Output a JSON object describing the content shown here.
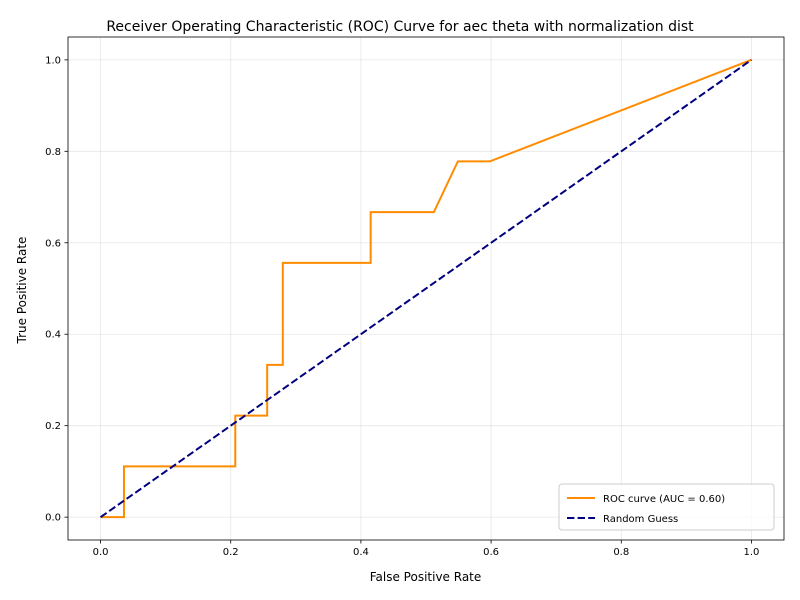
{
  "chart_data": {
    "type": "line",
    "title": "Receiver Operating Characteristic (ROC) Curve for aec theta with normalization dist",
    "xlabel": "False Positive Rate",
    "ylabel": "True Positive Rate",
    "xlim": [
      -0.05,
      1.05
    ],
    "ylim": [
      -0.05,
      1.05
    ],
    "xticks": [
      "0.0",
      "0.2",
      "0.4",
      "0.6",
      "0.8",
      "1.0"
    ],
    "yticks": [
      "0.0",
      "0.2",
      "0.4",
      "0.6",
      "0.8",
      "1.0"
    ],
    "grid": true,
    "legend_position": "lower-right",
    "series": [
      {
        "name": "ROC curve (AUC = 0.60)",
        "style": "solid",
        "color": "#ff8c00",
        "x": [
          0.0,
          0.036,
          0.036,
          0.207,
          0.207,
          0.256,
          0.256,
          0.28,
          0.28,
          0.415,
          0.415,
          0.512,
          0.549,
          0.598,
          1.0
        ],
        "y": [
          0.0,
          0.0,
          0.111,
          0.111,
          0.222,
          0.222,
          0.333,
          0.333,
          0.556,
          0.556,
          0.667,
          0.667,
          0.778,
          0.778,
          1.0
        ]
      },
      {
        "name": "Random Guess",
        "style": "dashed",
        "color": "#000080",
        "x": [
          0.0,
          1.0
        ],
        "y": [
          0.0,
          1.0
        ]
      }
    ]
  }
}
